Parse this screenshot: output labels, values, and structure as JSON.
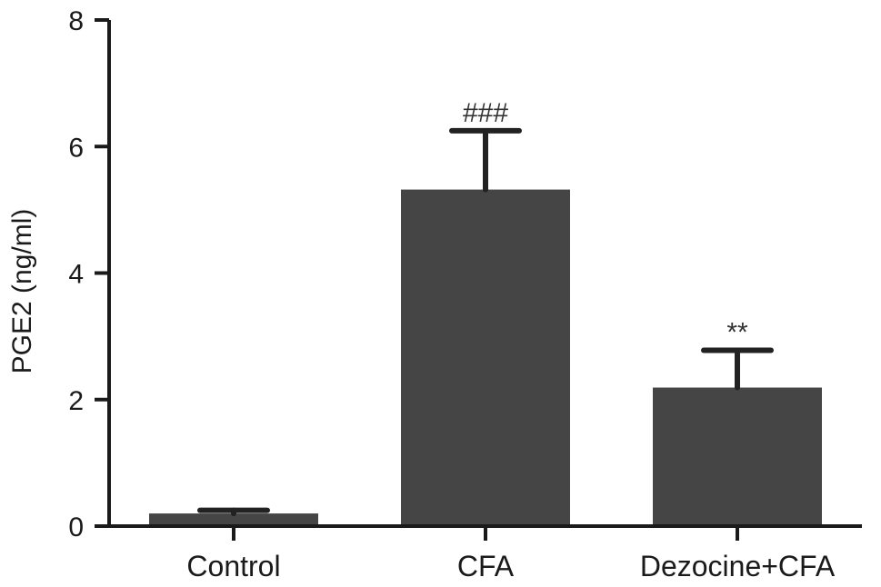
{
  "chart_data": {
    "type": "bar",
    "title": "",
    "xlabel": "",
    "ylabel": "PGE2 (ng/ml)",
    "categories": [
      "Control",
      "CFA",
      "Dezocine+CFA"
    ],
    "values": [
      0.2,
      5.32,
      2.19
    ],
    "errors": [
      0.05,
      0.93,
      0.59
    ],
    "annotations": [
      "",
      "###",
      "**"
    ],
    "ylim": [
      0,
      8
    ],
    "yticks": [
      0,
      2,
      4,
      6,
      8
    ],
    "ytick_labels": [
      "0",
      "2",
      "4",
      "6",
      "8"
    ],
    "grid": false,
    "bar_color": "#454545",
    "error_bar_color": "#222222",
    "axis_color": "#1a1a1a"
  }
}
